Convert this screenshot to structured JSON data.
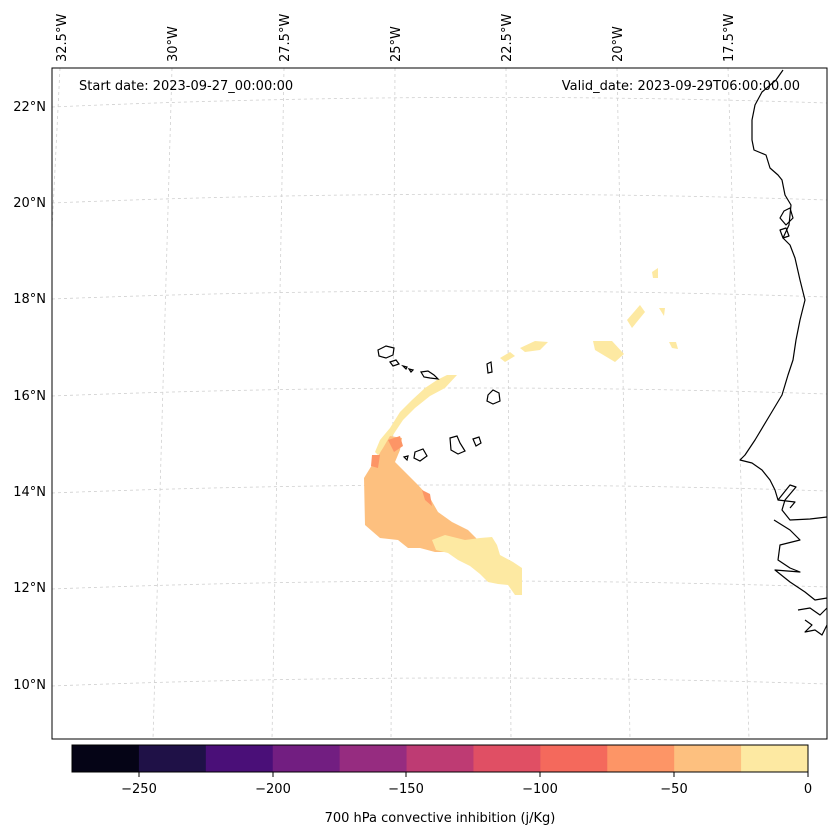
{
  "header": {
    "start_date": "Start date: 2023-09-27_00:00:00",
    "valid_date": "Valid_date: 2023-09-29T06:00:00.00"
  },
  "map": {
    "lon_labels": [
      "32.5°W",
      "30°W",
      "27.5°W",
      "25°W",
      "22.5°W",
      "20°W",
      "17.5°W"
    ],
    "lat_labels": [
      "22°N",
      "20°N",
      "18°N",
      "16°N",
      "14°N",
      "12°N",
      "10°N"
    ],
    "colors": {
      "level_0_to_25": "#fde9a2",
      "level_25_to_50": "#fdc07f",
      "level_50_to_75": "#fd9566"
    }
  },
  "colorbar": {
    "label": "700 hPa convective inhibition (j/Kg)",
    "ticks": [
      "−250",
      "−200",
      "−150",
      "−100",
      "−50",
      "0"
    ],
    "colors": [
      "#050416",
      "#1f1147",
      "#4a0f78",
      "#721e81",
      "#962c80",
      "#be3b73",
      "#e04f64",
      "#f4695c",
      "#fd9566",
      "#fdc07f",
      "#fde9a2"
    ]
  }
}
